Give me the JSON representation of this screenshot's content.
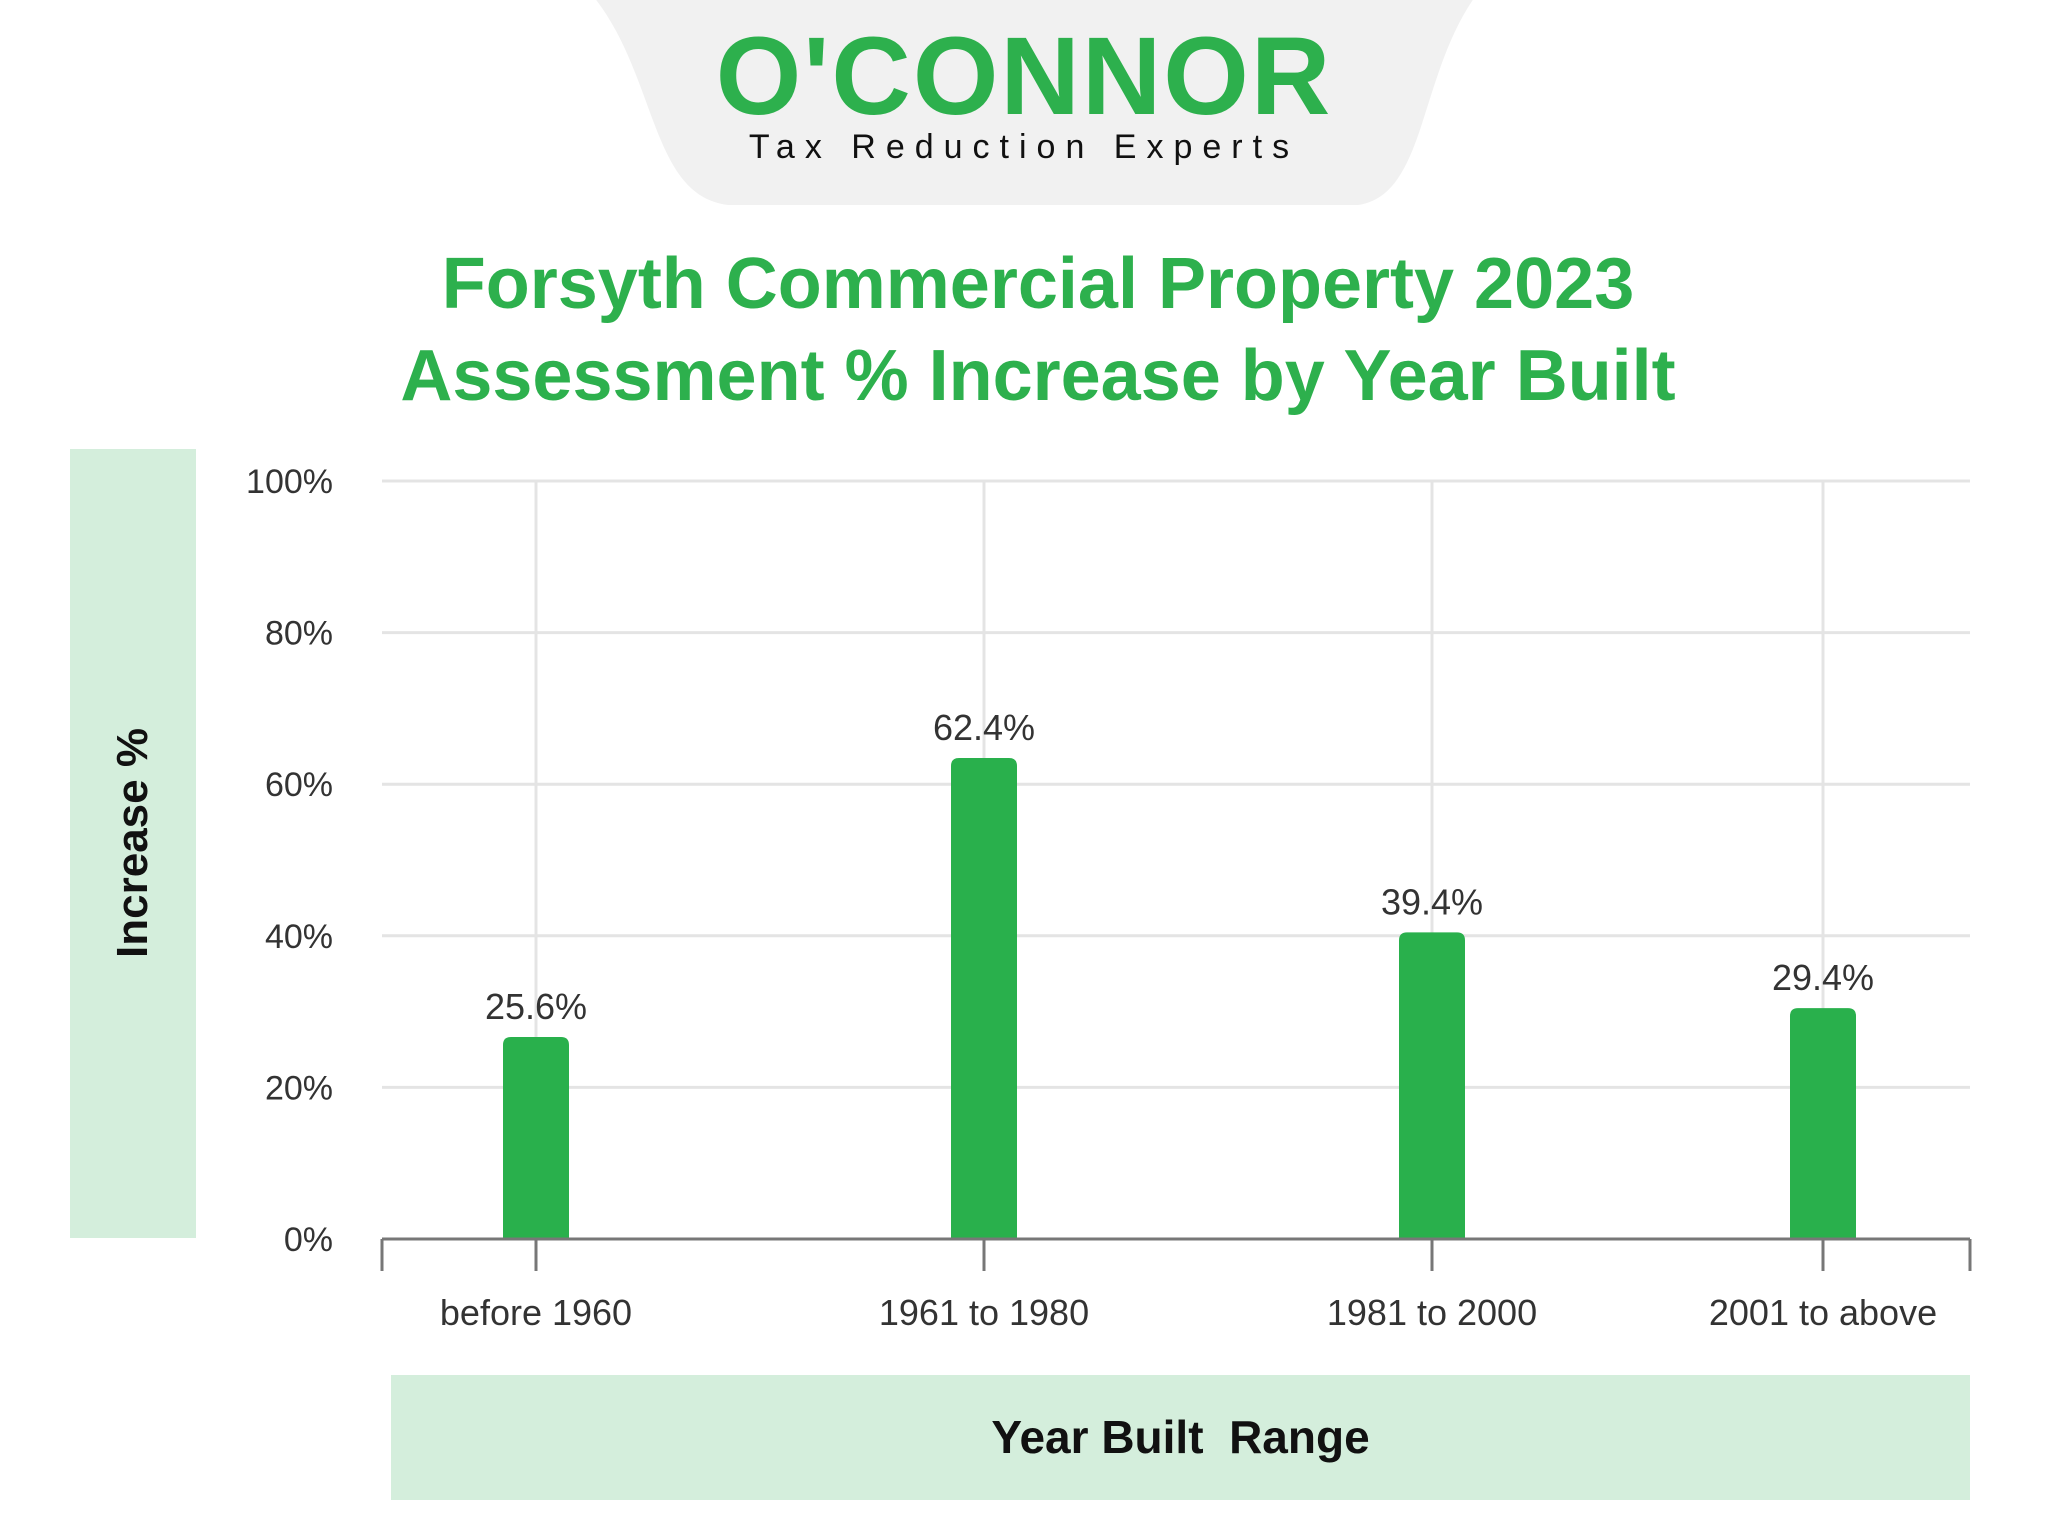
{
  "logo": {
    "name": "O'CONNOR",
    "tagline": "Tax Reduction Experts"
  },
  "colors": {
    "bar": "#29b04c",
    "title": "#2db04d",
    "panel": "#d4eedc",
    "grid": "#e4e4e4",
    "axis": "#777777"
  },
  "chart_data": {
    "type": "bar",
    "title": [
      "Forsyth Commercial Property 2023",
      "Assessment % Increase by Year Built"
    ],
    "xlabel": "Year Built  Range",
    "ylabel": "Increase %",
    "categories": [
      "before 1960",
      "1961 to 1980",
      "1981 to 2000",
      "2001 to above"
    ],
    "values": [
      25.6,
      62.4,
      39.4,
      29.4
    ],
    "data_labels": [
      "25.6%",
      "62.4%",
      "39.4%",
      "29.4%"
    ],
    "ylim": [
      0,
      100
    ],
    "yticks": [
      0,
      20,
      40,
      60,
      80,
      100
    ],
    "ytick_labels": [
      "0%",
      "20%",
      "40%",
      "60%",
      "80%",
      "100%"
    ],
    "grid": true,
    "legend": "none"
  }
}
